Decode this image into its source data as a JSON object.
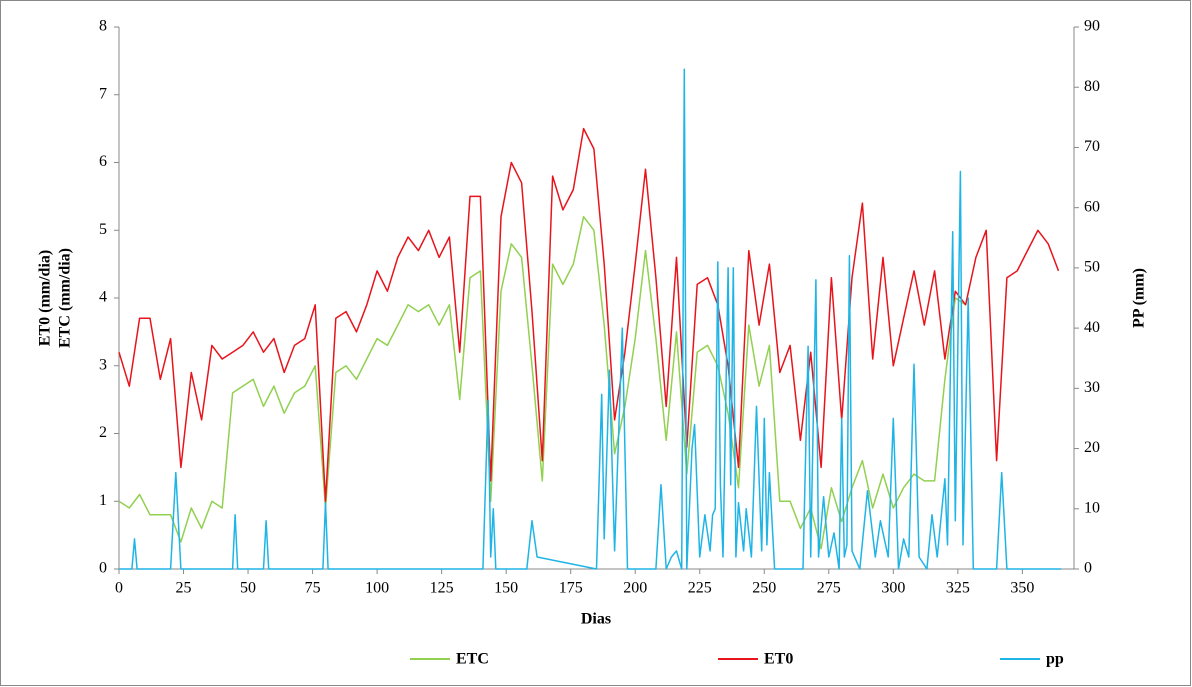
{
  "chart_data": {
    "type": "line",
    "xlabel": "Dias",
    "ylabel": [
      "ET0 (mm/dia)",
      "ETC (mm/dia)"
    ],
    "y2label": "PP (mm)",
    "xlim": [
      0,
      370
    ],
    "xticks": [
      0,
      25,
      50,
      75,
      100,
      125,
      150,
      175,
      200,
      225,
      250,
      275,
      300,
      325,
      350
    ],
    "ylim": [
      0,
      8
    ],
    "yticks": [
      0,
      1,
      2,
      3,
      4,
      5,
      6,
      7,
      8
    ],
    "y2lim": [
      0,
      90
    ],
    "y2ticks": [
      0,
      10,
      20,
      30,
      40,
      50,
      60,
      70,
      80,
      90
    ],
    "x": [
      0,
      4,
      8,
      12,
      16,
      20,
      24,
      28,
      32,
      36,
      40,
      44,
      48,
      52,
      56,
      60,
      64,
      68,
      72,
      76,
      80,
      84,
      88,
      92,
      96,
      100,
      104,
      108,
      112,
      116,
      120,
      124,
      128,
      132,
      136,
      140,
      144,
      148,
      152,
      156,
      160,
      164,
      168,
      172,
      176,
      180,
      184,
      188,
      192,
      196,
      200,
      204,
      208,
      212,
      216,
      220,
      224,
      228,
      232,
      236,
      240,
      244,
      248,
      252,
      256,
      260,
      264,
      268,
      272,
      276,
      280,
      284,
      288,
      292,
      296,
      300,
      304,
      308,
      312,
      316,
      320,
      324,
      328,
      332,
      336,
      340,
      344,
      348,
      352,
      356,
      360,
      364
    ],
    "series": [
      {
        "name": "ETC",
        "color": "#92d050",
        "values": [
          1.0,
          0.9,
          1.1,
          0.8,
          0.8,
          0.8,
          0.4,
          0.9,
          0.6,
          1.0,
          0.9,
          2.6,
          2.7,
          2.8,
          2.4,
          2.7,
          2.3,
          2.6,
          2.7,
          3.0,
          0.9,
          2.9,
          3.0,
          2.8,
          3.1,
          3.4,
          3.3,
          3.6,
          3.9,
          3.8,
          3.9,
          3.6,
          3.9,
          2.5,
          4.3,
          4.4,
          1.0,
          4.1,
          4.8,
          4.6,
          3.0,
          1.3,
          4.5,
          4.2,
          4.5,
          5.2,
          5.0,
          3.6,
          1.7,
          2.4,
          3.4,
          4.7,
          3.4,
          1.9,
          3.5,
          1.4,
          3.2,
          3.3,
          3.0,
          2.3,
          1.2,
          3.6,
          2.7,
          3.3,
          1.0,
          1.0,
          0.6,
          0.9,
          0.3,
          1.2,
          0.7,
          1.2,
          1.6,
          0.9,
          1.4,
          0.9,
          1.2,
          1.4,
          1.3,
          1.3,
          2.8,
          4.0,
          3.9,
          null,
          null,
          null,
          null,
          null,
          null,
          null,
          null,
          null
        ]
      },
      {
        "name": "ET0",
        "color": "#e8141c",
        "values": [
          3.2,
          2.7,
          3.7,
          3.7,
          2.8,
          3.4,
          1.5,
          2.9,
          2.2,
          3.3,
          3.1,
          3.2,
          3.3,
          3.5,
          3.2,
          3.4,
          2.9,
          3.3,
          3.4,
          3.9,
          1.0,
          3.7,
          3.8,
          3.5,
          3.9,
          4.4,
          4.1,
          4.6,
          4.9,
          4.7,
          5.0,
          4.6,
          4.9,
          3.2,
          5.5,
          5.5,
          1.3,
          5.2,
          6.0,
          5.7,
          3.8,
          1.6,
          5.8,
          5.3,
          5.6,
          6.5,
          6.2,
          4.5,
          2.2,
          3.2,
          4.5,
          5.9,
          4.3,
          2.4,
          4.6,
          1.8,
          4.2,
          4.3,
          3.9,
          3.0,
          1.5,
          4.7,
          3.6,
          4.5,
          2.9,
          3.3,
          1.9,
          3.2,
          1.5,
          4.3,
          2.2,
          4.3,
          5.4,
          3.1,
          4.6,
          3.0,
          3.7,
          4.4,
          3.6,
          4.4,
          3.1,
          4.1,
          3.9,
          4.6,
          5.0,
          1.6,
          4.3,
          4.4,
          4.7,
          5.0,
          4.8,
          4.4
        ]
      },
      {
        "name": "pp",
        "color": "#1fb4e6",
        "axis": "y2",
        "x": [
          0,
          5,
          6,
          7,
          20,
          22,
          24,
          44,
          45,
          46,
          56,
          57,
          58,
          79,
          80,
          81,
          141,
          143,
          144,
          145,
          146,
          158,
          160,
          162,
          185,
          187,
          188,
          190,
          192,
          195,
          197,
          208,
          210,
          212,
          214,
          216,
          218,
          219,
          220,
          222,
          223,
          225,
          227,
          229,
          230,
          231,
          232,
          233,
          234,
          236,
          237,
          238,
          239,
          240,
          242,
          243,
          245,
          247,
          249,
          250,
          251,
          252,
          254,
          265,
          267,
          268,
          270,
          271,
          273,
          275,
          277,
          279,
          280,
          281,
          282,
          283,
          284,
          287,
          290,
          293,
          295,
          298,
          300,
          302,
          304,
          306,
          308,
          310,
          313,
          315,
          317,
          320,
          321,
          323,
          324,
          326,
          327,
          329,
          331,
          340,
          342,
          344,
          365
        ],
        "values": [
          0,
          0,
          5,
          0,
          0,
          16,
          0,
          0,
          9,
          0,
          0,
          8,
          0,
          0,
          11,
          0,
          0,
          28,
          2,
          10,
          0,
          0,
          8,
          2,
          0,
          29,
          5,
          33,
          3,
          40,
          0,
          0,
          14,
          0,
          2,
          3,
          0,
          83,
          0,
          20,
          24,
          2,
          9,
          3,
          9,
          10,
          51,
          14,
          2,
          50,
          14,
          50,
          2,
          11,
          3,
          10,
          2,
          27,
          3,
          25,
          4,
          16,
          0,
          0,
          37,
          2,
          48,
          2,
          12,
          2,
          6,
          0,
          25,
          2,
          4,
          52,
          3,
          0,
          13,
          2,
          8,
          2,
          25,
          0,
          5,
          2,
          34,
          2,
          0,
          9,
          2,
          15,
          4,
          56,
          8,
          66,
          4,
          45,
          0,
          0,
          16,
          0,
          0
        ]
      }
    ]
  }
}
